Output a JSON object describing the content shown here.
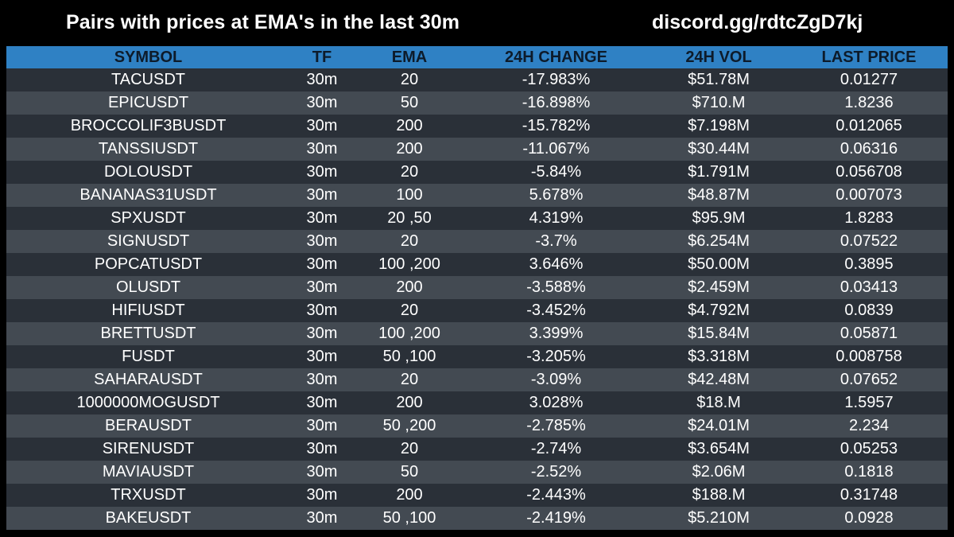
{
  "header": {
    "title": "Pairs with prices at EMA's in the last 30m",
    "link": "discord.gg/rdtcZgD7kj"
  },
  "table": {
    "columns": [
      "SYMBOL",
      "TF",
      "EMA",
      "24H CHANGE",
      "24H VOL",
      "LAST PRICE"
    ],
    "rows": [
      [
        "TACUSDT",
        "30m",
        "20",
        "-17.983%",
        "$51.78M",
        "0.01277"
      ],
      [
        "EPICUSDT",
        "30m",
        "50",
        "-16.898%",
        "$710.M",
        "1.8236"
      ],
      [
        "BROCCOLIF3BUSDT",
        "30m",
        "200",
        "-15.782%",
        "$7.198M",
        "0.012065"
      ],
      [
        "TANSSIUSDT",
        "30m",
        "200",
        "-11.067%",
        "$30.44M",
        "0.06316"
      ],
      [
        "DOLOUSDT",
        "30m",
        "20",
        "-5.84%",
        "$1.791M",
        "0.056708"
      ],
      [
        "BANANAS31USDT",
        "30m",
        "100",
        "5.678%",
        "$48.87M",
        "0.007073"
      ],
      [
        "SPXUSDT",
        "30m",
        "20 ,50",
        "4.319%",
        "$95.9M",
        "1.8283"
      ],
      [
        "SIGNUSDT",
        "30m",
        "20",
        "-3.7%",
        "$6.254M",
        "0.07522"
      ],
      [
        "POPCATUSDT",
        "30m",
        "100 ,200",
        "3.646%",
        "$50.00M",
        "0.3895"
      ],
      [
        "OLUSDT",
        "30m",
        "200",
        "-3.588%",
        "$2.459M",
        "0.03413"
      ],
      [
        "HIFIUSDT",
        "30m",
        "20",
        "-3.452%",
        "$4.792M",
        "0.0839"
      ],
      [
        "BRETTUSDT",
        "30m",
        "100 ,200",
        "3.399%",
        "$15.84M",
        "0.05871"
      ],
      [
        "FUSDT",
        "30m",
        "50 ,100",
        "-3.205%",
        "$3.318M",
        "0.008758"
      ],
      [
        "SAHARAUSDT",
        "30m",
        "20",
        "-3.09%",
        "$42.48M",
        "0.07652"
      ],
      [
        "1000000MOGUSDT",
        "30m",
        "200",
        "3.028%",
        "$18.M",
        "1.5957"
      ],
      [
        "BERAUSDT",
        "30m",
        "50 ,200",
        "-2.785%",
        "$24.01M",
        "2.234"
      ],
      [
        "SIRENUSDT",
        "30m",
        "20",
        "-2.74%",
        "$3.654M",
        "0.05253"
      ],
      [
        "MAVIAUSDT",
        "30m",
        "50",
        "-2.52%",
        "$2.06M",
        "0.1818"
      ],
      [
        "TRXUSDT",
        "30m",
        "200",
        "-2.443%",
        "$188.M",
        "0.31748"
      ],
      [
        "BAKEUSDT",
        "30m",
        "50 ,100",
        "-2.419%",
        "$5.210M",
        "0.0928"
      ]
    ]
  },
  "colors": {
    "background": "#000000",
    "header_bar": "#2f81c4",
    "header_text": "#0d1b2a",
    "row_dark": "#2a3038",
    "row_light": "#434a52",
    "text": "#ffffff"
  }
}
